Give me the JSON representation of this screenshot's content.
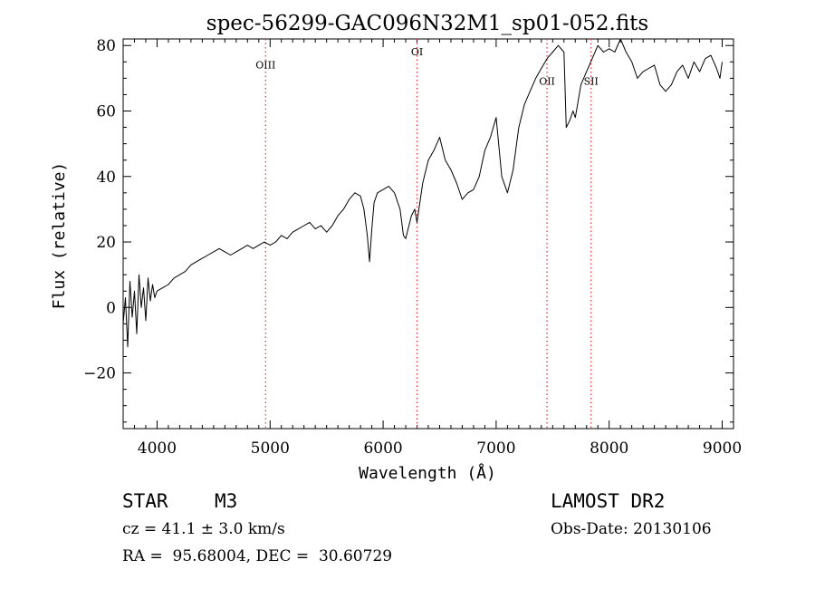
{
  "chart_data": {
    "type": "line",
    "title": "spec-56299-GAC096N32M1_sp01-052.fits",
    "xlabel": "Wavelength (Å)",
    "ylabel": "Flux (relative)",
    "xlim": [
      3700,
      9100
    ],
    "ylim": [
      -37,
      82
    ],
    "xticks": [
      4000,
      5000,
      6000,
      7000,
      8000,
      9000
    ],
    "yticks": [
      -20,
      0,
      20,
      40,
      60,
      80
    ],
    "x_minor_step": 100,
    "y_minor_step": 5,
    "grid": false,
    "series": [
      {
        "x": [
          3700,
          3720,
          3740,
          3760,
          3780,
          3800,
          3820,
          3840,
          3860,
          3880,
          3900,
          3920,
          3940,
          3960,
          3980,
          4000,
          4050,
          4100,
          4150,
          4200,
          4250,
          4300,
          4350,
          4400,
          4450,
          4500,
          4550,
          4600,
          4650,
          4700,
          4750,
          4800,
          4850,
          4900,
          4950,
          5000,
          5050,
          5100,
          5150,
          5200,
          5250,
          5300,
          5350,
          5400,
          5450,
          5500,
          5550,
          5600,
          5650,
          5700,
          5750,
          5800,
          5830,
          5860,
          5880,
          5900,
          5920,
          5950,
          6000,
          6050,
          6100,
          6150,
          6180,
          6200,
          6250,
          6280,
          6300,
          6350,
          6400,
          6450,
          6500,
          6550,
          6600,
          6650,
          6700,
          6750,
          6800,
          6850,
          6900,
          6950,
          7000,
          7050,
          7100,
          7150,
          7200,
          7250,
          7300,
          7350,
          7400,
          7450,
          7500,
          7550,
          7600,
          7620,
          7650,
          7680,
          7700,
          7720,
          7750,
          7800,
          7850,
          7900,
          7950,
          8000,
          8050,
          8100,
          8150,
          8200,
          8250,
          8300,
          8350,
          8400,
          8450,
          8500,
          8550,
          8600,
          8650,
          8700,
          8750,
          8800,
          8850,
          8900,
          8950,
          8980,
          9000
        ],
        "y": [
          -5,
          3,
          -12,
          8,
          -3,
          5,
          -8,
          10,
          0,
          6,
          -4,
          9,
          2,
          7,
          3,
          5,
          6,
          7,
          9,
          10,
          11,
          13,
          14,
          15,
          16,
          17,
          18,
          17,
          16,
          17,
          18,
          19,
          18,
          19,
          20,
          19,
          20,
          22,
          21,
          23,
          24,
          25,
          26,
          24,
          25,
          23,
          25,
          28,
          30,
          33,
          35,
          34,
          30,
          22,
          14,
          24,
          32,
          35,
          36,
          37,
          35,
          30,
          22,
          21,
          28,
          30,
          26,
          38,
          45,
          48,
          52,
          45,
          42,
          38,
          33,
          35,
          36,
          40,
          48,
          52,
          58,
          40,
          35,
          42,
          55,
          62,
          66,
          70,
          73,
          76,
          78,
          80,
          78,
          55,
          57,
          60,
          58,
          62,
          68,
          72,
          76,
          80,
          78,
          79,
          78,
          82,
          78,
          75,
          70,
          72,
          73,
          74,
          68,
          66,
          68,
          72,
          74,
          70,
          75,
          72,
          76,
          77,
          73,
          70,
          75
        ]
      }
    ],
    "line_markers": [
      {
        "label": "OIII",
        "x": 4960,
        "label_y": 73
      },
      {
        "label": "OI",
        "x": 6300,
        "label_y": 77
      },
      {
        "label": "OII",
        "x": 7450,
        "label_y": 68
      },
      {
        "label": "SII",
        "x": 7840,
        "label_y": 68
      }
    ],
    "colors": {
      "line": "#000000",
      "marker": "#e23030",
      "axes": "#000000"
    }
  },
  "info": {
    "obj_class": "STAR",
    "subclass": "M3",
    "survey": "LAMOST DR2",
    "cz": "cz = 41.1 ± 3.0 km/s",
    "obs_date": "Obs-Date: 20130106",
    "coords": "RA =  95.68004, DEC =  30.60729"
  }
}
